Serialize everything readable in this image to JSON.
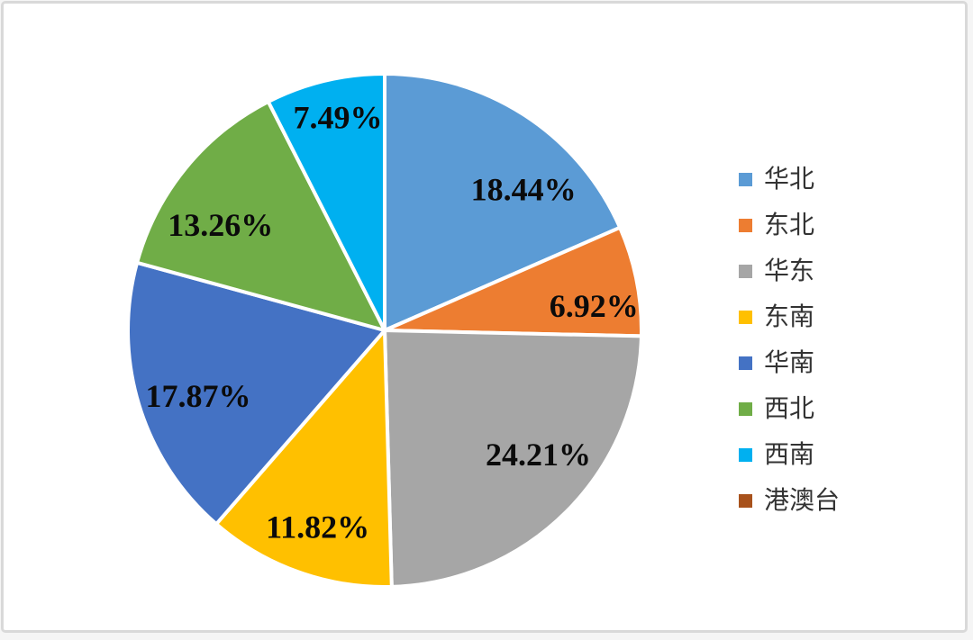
{
  "window": {
    "background_color": "#ffffff",
    "frame_border_color": "#d9d9d9"
  },
  "chart_data": {
    "type": "pie",
    "title": "",
    "categories": [
      "华北",
      "东北",
      "华东",
      "东南",
      "华南",
      "西北",
      "西南",
      "港澳台"
    ],
    "values": [
      18.44,
      6.92,
      24.21,
      11.82,
      17.87,
      13.26,
      7.49,
      0
    ],
    "labels": [
      "18.44%",
      "6.92%",
      "24.21%",
      "11.82%",
      "17.87%",
      "13.26%",
      "7.49%",
      ""
    ],
    "colors": [
      "#5B9BD5",
      "#ED7D31",
      "#A6A6A6",
      "#FFC000",
      "#4472C4",
      "#70AD47",
      "#00B0F0",
      "#A8521C"
    ],
    "slice_gap_color": "#ffffff",
    "start_angle_deg": 0,
    "direction": "clockwise",
    "legend_position": "right",
    "label_placement": [
      {
        "angle": 44.6,
        "r": 0.77
      },
      {
        "angle": 83.4,
        "r": 0.82
      },
      {
        "angle": 129.0,
        "r": 0.77
      },
      {
        "angle": 198.8,
        "r": 0.81
      },
      {
        "angle": 250.6,
        "r": 0.77
      },
      {
        "angle": 302.7,
        "r": 0.76
      },
      {
        "angle": 347.6,
        "r": 0.85
      },
      null
    ]
  }
}
